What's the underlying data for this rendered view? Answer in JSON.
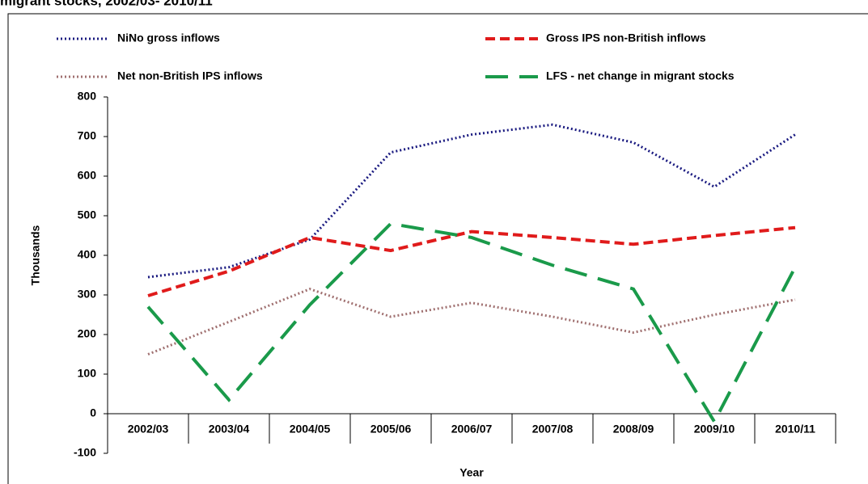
{
  "chart_data": {
    "type": "line",
    "title": "migrant stocks, 2002/03- 2010/11",
    "xlabel": "Year",
    "ylabel": "Thousands",
    "categories": [
      "2002/03",
      "2003/04",
      "2004/05",
      "2005/06",
      "2006/07",
      "2007/08",
      "2008/09",
      "2009/10",
      "2010/11"
    ],
    "ylim": [
      -100,
      800
    ],
    "yticks": [
      -100,
      0,
      100,
      200,
      300,
      400,
      500,
      600,
      700,
      800
    ],
    "grid": false,
    "series": [
      {
        "name": "NiNo gross inflows",
        "color": "#1a1a80",
        "style": "dotted",
        "values": [
          345,
          370,
          440,
          660,
          705,
          730,
          685,
          573,
          705
        ]
      },
      {
        "name": "Gross IPS non-British  inflows",
        "color": "#e01b1b",
        "style": "dashed",
        "values": [
          298,
          360,
          445,
          412,
          460,
          445,
          428,
          450,
          470
        ]
      },
      {
        "name": "Net non-British  IPS inflows",
        "color": "#a07070",
        "style": "dotted",
        "values": [
          150,
          232,
          315,
          245,
          280,
          245,
          205,
          250,
          288
        ]
      },
      {
        "name": "LFS - net change in migrant stocks",
        "color": "#1a9a4a",
        "style": "longdash",
        "values": [
          270,
          35,
          275,
          480,
          445,
          375,
          315,
          -20,
          370
        ]
      }
    ]
  }
}
